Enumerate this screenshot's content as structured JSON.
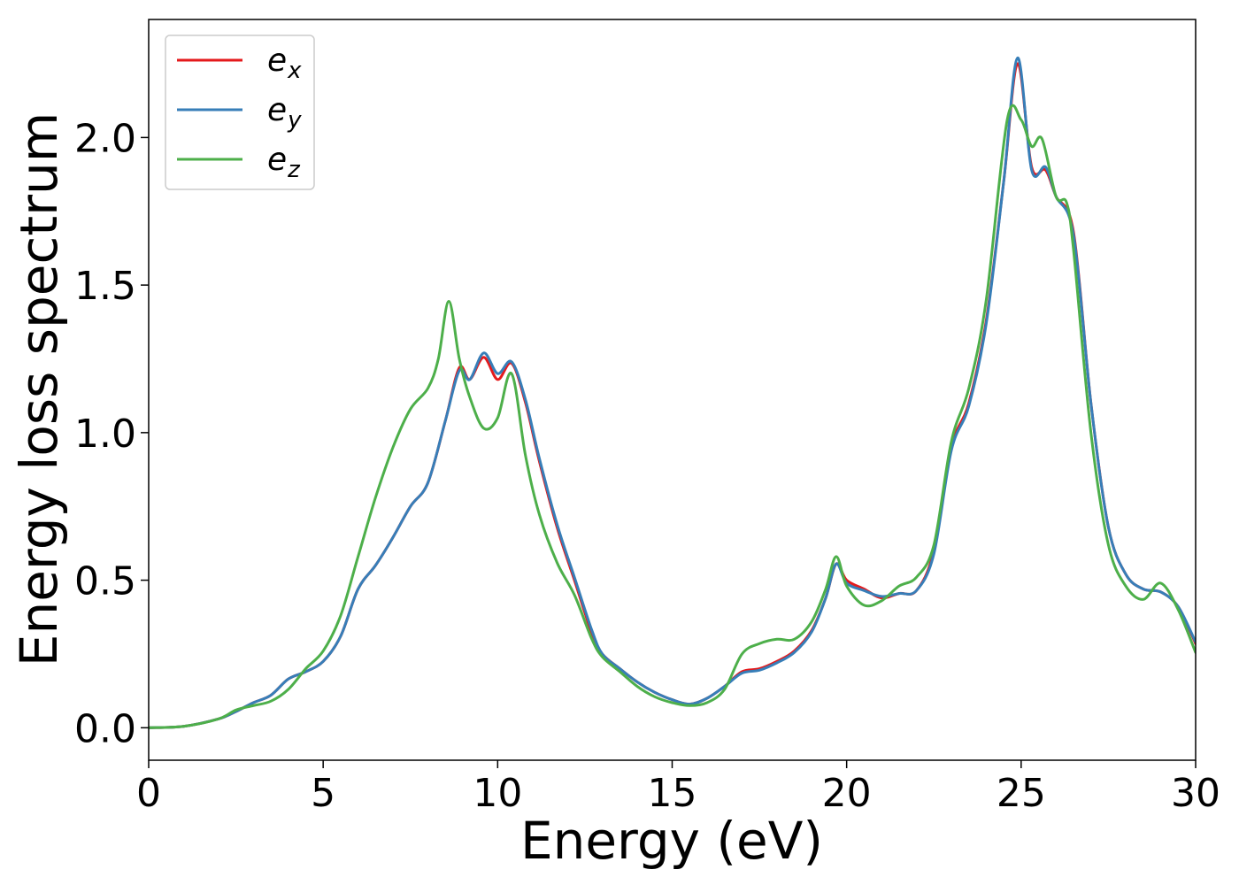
{
  "chart_data": {
    "type": "line",
    "title": "",
    "xlabel": "Energy (eV)",
    "ylabel": "Energy loss spectrum",
    "xlim": [
      0,
      30
    ],
    "ylim": [
      -0.11,
      2.4
    ],
    "xticks": [
      0,
      5,
      10,
      15,
      20,
      25,
      30
    ],
    "xtick_labels": [
      "0",
      "5",
      "10",
      "15",
      "20",
      "25",
      "30"
    ],
    "yticks": [
      0.0,
      0.5,
      1.0,
      1.5,
      2.0
    ],
    "ytick_labels": [
      "0.0",
      "0.5",
      "1.0",
      "1.5",
      "2.0"
    ],
    "grid": false,
    "legend_position": "top-left",
    "series": [
      {
        "name": "e",
        "subscript": "x",
        "color": "#e41a1c",
        "points": [
          [
            0,
            0
          ],
          [
            1,
            0.005
          ],
          [
            2,
            0.03
          ],
          [
            2.5,
            0.055
          ],
          [
            3,
            0.085
          ],
          [
            3.5,
            0.11
          ],
          [
            4,
            0.165
          ],
          [
            4.5,
            0.19
          ],
          [
            5,
            0.225
          ],
          [
            5.5,
            0.31
          ],
          [
            6,
            0.47
          ],
          [
            6.5,
            0.55
          ],
          [
            7,
            0.645
          ],
          [
            7.5,
            0.75
          ],
          [
            8,
            0.83
          ],
          [
            8.5,
            1.04
          ],
          [
            8.9,
            1.22
          ],
          [
            9.2,
            1.18
          ],
          [
            9.6,
            1.255
          ],
          [
            10,
            1.18
          ],
          [
            10.4,
            1.235
          ],
          [
            10.8,
            1.1
          ],
          [
            11.2,
            0.9
          ],
          [
            11.7,
            0.68
          ],
          [
            12.2,
            0.5
          ],
          [
            12.7,
            0.32
          ],
          [
            13,
            0.25
          ],
          [
            13.5,
            0.2
          ],
          [
            14,
            0.155
          ],
          [
            14.5,
            0.12
          ],
          [
            15,
            0.095
          ],
          [
            15.5,
            0.08
          ],
          [
            16,
            0.1
          ],
          [
            16.5,
            0.14
          ],
          [
            17,
            0.19
          ],
          [
            17.5,
            0.2
          ],
          [
            18,
            0.225
          ],
          [
            18.5,
            0.26
          ],
          [
            19,
            0.33
          ],
          [
            19.4,
            0.44
          ],
          [
            19.7,
            0.555
          ],
          [
            20,
            0.5
          ],
          [
            20.5,
            0.47
          ],
          [
            21,
            0.44
          ],
          [
            21.5,
            0.455
          ],
          [
            22,
            0.465
          ],
          [
            22.5,
            0.6
          ],
          [
            23,
            0.95
          ],
          [
            23.5,
            1.1
          ],
          [
            24,
            1.38
          ],
          [
            24.5,
            1.85
          ],
          [
            24.9,
            2.25
          ],
          [
            25.3,
            1.9
          ],
          [
            25.7,
            1.89
          ],
          [
            26,
            1.8
          ],
          [
            26.5,
            1.68
          ],
          [
            27,
            1.1
          ],
          [
            27.5,
            0.68
          ],
          [
            28,
            0.52
          ],
          [
            28.5,
            0.47
          ],
          [
            29,
            0.46
          ],
          [
            29.5,
            0.41
          ],
          [
            30,
            0.285
          ]
        ]
      },
      {
        "name": "e",
        "subscript": "y",
        "color": "#377eb8",
        "points": [
          [
            0,
            0
          ],
          [
            1,
            0.005
          ],
          [
            2,
            0.03
          ],
          [
            2.5,
            0.055
          ],
          [
            3,
            0.085
          ],
          [
            3.5,
            0.11
          ],
          [
            4,
            0.165
          ],
          [
            4.5,
            0.19
          ],
          [
            5,
            0.225
          ],
          [
            5.5,
            0.31
          ],
          [
            6,
            0.47
          ],
          [
            6.5,
            0.55
          ],
          [
            7,
            0.645
          ],
          [
            7.5,
            0.75
          ],
          [
            8,
            0.83
          ],
          [
            8.5,
            1.04
          ],
          [
            8.9,
            1.21
          ],
          [
            9.2,
            1.18
          ],
          [
            9.6,
            1.27
          ],
          [
            10,
            1.2
          ],
          [
            10.4,
            1.24
          ],
          [
            10.8,
            1.11
          ],
          [
            11.2,
            0.91
          ],
          [
            11.7,
            0.69
          ],
          [
            12.2,
            0.51
          ],
          [
            12.7,
            0.33
          ],
          [
            13,
            0.25
          ],
          [
            13.5,
            0.2
          ],
          [
            14,
            0.155
          ],
          [
            14.5,
            0.12
          ],
          [
            15,
            0.095
          ],
          [
            15.5,
            0.08
          ],
          [
            16,
            0.1
          ],
          [
            16.5,
            0.14
          ],
          [
            17,
            0.185
          ],
          [
            17.5,
            0.195
          ],
          [
            18,
            0.22
          ],
          [
            18.5,
            0.255
          ],
          [
            19,
            0.325
          ],
          [
            19.4,
            0.44
          ],
          [
            19.7,
            0.555
          ],
          [
            20,
            0.49
          ],
          [
            20.5,
            0.465
          ],
          [
            21,
            0.445
          ],
          [
            21.5,
            0.455
          ],
          [
            22,
            0.465
          ],
          [
            22.5,
            0.59
          ],
          [
            23,
            0.94
          ],
          [
            23.5,
            1.09
          ],
          [
            24,
            1.37
          ],
          [
            24.5,
            1.85
          ],
          [
            24.9,
            2.27
          ],
          [
            25.3,
            1.89
          ],
          [
            25.7,
            1.9
          ],
          [
            26,
            1.8
          ],
          [
            26.5,
            1.67
          ],
          [
            27,
            1.1
          ],
          [
            27.5,
            0.68
          ],
          [
            28,
            0.52
          ],
          [
            28.5,
            0.47
          ],
          [
            29,
            0.46
          ],
          [
            29.5,
            0.41
          ],
          [
            30,
            0.29
          ]
        ]
      },
      {
        "name": "e",
        "subscript": "z",
        "color": "#4daf4a",
        "points": [
          [
            0,
            0
          ],
          [
            1,
            0.005
          ],
          [
            2,
            0.03
          ],
          [
            2.5,
            0.06
          ],
          [
            3,
            0.075
          ],
          [
            3.5,
            0.09
          ],
          [
            4,
            0.13
          ],
          [
            4.5,
            0.2
          ],
          [
            5,
            0.26
          ],
          [
            5.5,
            0.38
          ],
          [
            6,
            0.58
          ],
          [
            6.5,
            0.78
          ],
          [
            7,
            0.95
          ],
          [
            7.5,
            1.08
          ],
          [
            8,
            1.15
          ],
          [
            8.3,
            1.25
          ],
          [
            8.6,
            1.445
          ],
          [
            8.9,
            1.25
          ],
          [
            9.2,
            1.12
          ],
          [
            9.6,
            1.015
          ],
          [
            10,
            1.05
          ],
          [
            10.4,
            1.2
          ],
          [
            10.8,
            0.92
          ],
          [
            11.2,
            0.72
          ],
          [
            11.7,
            0.56
          ],
          [
            12.2,
            0.45
          ],
          [
            12.7,
            0.3
          ],
          [
            13,
            0.24
          ],
          [
            13.5,
            0.19
          ],
          [
            14,
            0.14
          ],
          [
            14.5,
            0.105
          ],
          [
            15,
            0.085
          ],
          [
            15.5,
            0.075
          ],
          [
            16,
            0.085
          ],
          [
            16.5,
            0.13
          ],
          [
            17,
            0.25
          ],
          [
            17.5,
            0.285
          ],
          [
            18,
            0.3
          ],
          [
            18.5,
            0.3
          ],
          [
            19,
            0.36
          ],
          [
            19.4,
            0.47
          ],
          [
            19.7,
            0.58
          ],
          [
            20,
            0.48
          ],
          [
            20.5,
            0.415
          ],
          [
            21,
            0.43
          ],
          [
            21.5,
            0.48
          ],
          [
            22,
            0.51
          ],
          [
            22.5,
            0.62
          ],
          [
            23,
            0.97
          ],
          [
            23.5,
            1.15
          ],
          [
            24,
            1.45
          ],
          [
            24.6,
            2.06
          ],
          [
            25,
            2.06
          ],
          [
            25.3,
            1.97
          ],
          [
            25.6,
            1.995
          ],
          [
            26,
            1.8
          ],
          [
            26.3,
            1.78
          ],
          [
            26.5,
            1.62
          ],
          [
            27,
            1.0
          ],
          [
            27.5,
            0.62
          ],
          [
            28,
            0.48
          ],
          [
            28.5,
            0.435
          ],
          [
            29,
            0.49
          ],
          [
            29.5,
            0.4
          ],
          [
            30,
            0.255
          ]
        ]
      }
    ]
  }
}
